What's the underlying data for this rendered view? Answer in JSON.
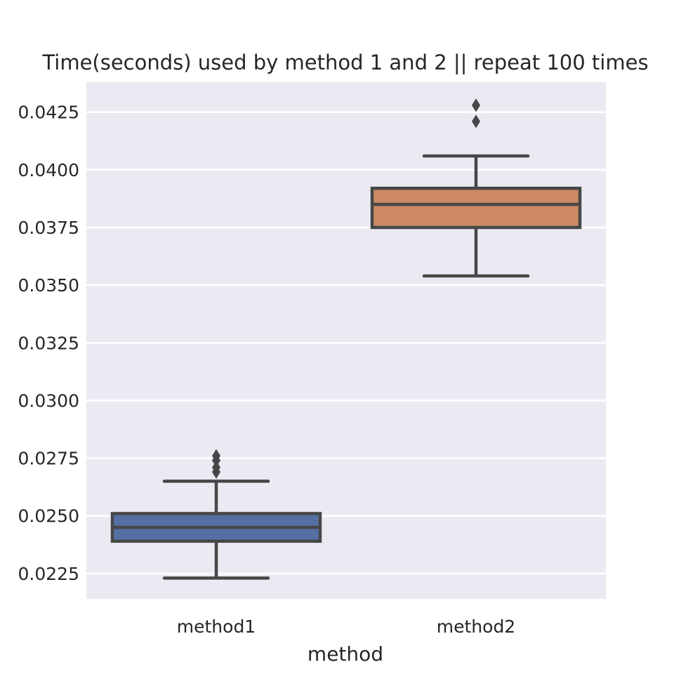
{
  "chart_data": {
    "type": "box",
    "title": "Time(seconds) used by method 1 and 2 || repeat 100 times",
    "xlabel": "method",
    "ylabel": "",
    "categories": [
      "method1",
      "method2"
    ],
    "ylim": [
      0.0214,
      0.0438
    ],
    "yticks": [
      0.0225,
      0.025,
      0.0275,
      0.03,
      0.0325,
      0.035,
      0.0375,
      0.04,
      0.0425
    ],
    "ytick_labels": [
      "0.0225",
      "0.0250",
      "0.0275",
      "0.0300",
      "0.0325",
      "0.0350",
      "0.0375",
      "0.0400",
      "0.0425"
    ],
    "grid": true,
    "boxes": [
      {
        "category": "method1",
        "color": "#5470a3",
        "whisker_low": 0.0223,
        "q1": 0.0239,
        "median": 0.0245,
        "q3": 0.0251,
        "whisker_high": 0.0265,
        "outliers": [
          0.0269,
          0.0271,
          0.0274,
          0.0276
        ]
      },
      {
        "category": "method2",
        "color": "#cc8963",
        "whisker_low": 0.0354,
        "q1": 0.0375,
        "median": 0.0385,
        "q3": 0.0392,
        "whisker_high": 0.0406,
        "outliers": [
          0.0421,
          0.0428
        ]
      }
    ],
    "colors": {
      "background": "#eaeaf2",
      "grid": "#ffffff",
      "line": "#474747"
    }
  }
}
